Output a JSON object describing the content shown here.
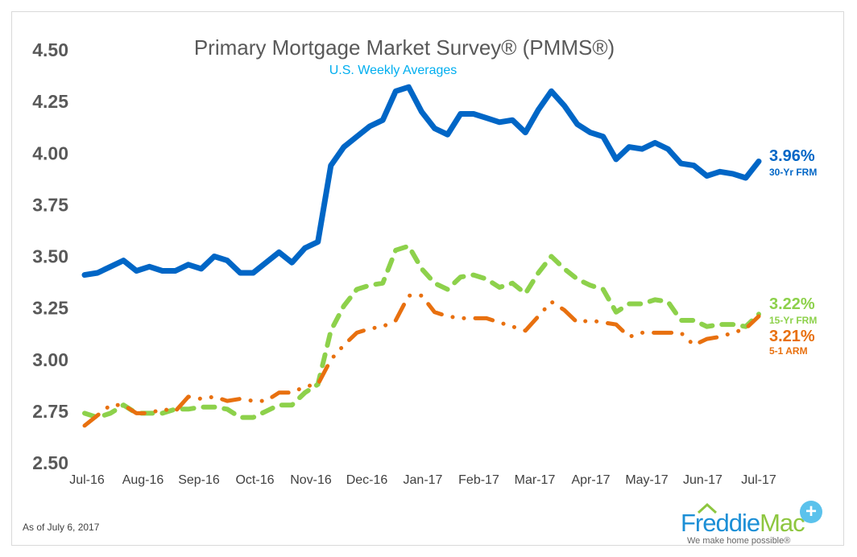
{
  "chart_data": {
    "type": "line",
    "title": "Primary Mortgage Market Survey® (PMMS®)",
    "subtitle": "U.S. Weekly Averages",
    "xlabel": "",
    "ylabel": "",
    "ylim": [
      2.5,
      4.5
    ],
    "yticks": [
      "4.50",
      "4.25",
      "4.00",
      "3.75",
      "3.50",
      "3.25",
      "3.00",
      "2.75",
      "2.50"
    ],
    "xticks": [
      "Jul-16",
      "Aug-16",
      "Sep-16",
      "Oct-16",
      "Nov-16",
      "Dec-16",
      "Jan-17",
      "Feb-17",
      "Mar-17",
      "Apr-17",
      "May-17",
      "Jun-17",
      "Jul-17"
    ],
    "grid": false,
    "series": [
      {
        "name": "30-Yr FRM",
        "last_label": "3.96%",
        "color": "#0066c6",
        "style": "solid",
        "values": [
          3.41,
          3.42,
          3.45,
          3.48,
          3.43,
          3.45,
          3.43,
          3.43,
          3.46,
          3.44,
          3.5,
          3.48,
          3.42,
          3.42,
          3.47,
          3.52,
          3.47,
          3.54,
          3.57,
          3.94,
          4.03,
          4.08,
          4.13,
          4.16,
          4.3,
          4.32,
          4.2,
          4.12,
          4.09,
          4.19,
          4.19,
          4.17,
          4.15,
          4.16,
          4.1,
          4.21,
          4.3,
          4.23,
          4.14,
          4.1,
          4.08,
          3.97,
          4.03,
          4.02,
          4.05,
          4.02,
          3.95,
          3.94,
          3.89,
          3.91,
          3.9,
          3.88,
          3.96
        ]
      },
      {
        "name": "15-Yr FRM",
        "last_label": "3.22%",
        "color": "#8dd14b",
        "style": "dashed",
        "values": [
          2.74,
          2.72,
          2.74,
          2.78,
          2.74,
          2.74,
          2.74,
          2.76,
          2.76,
          2.77,
          2.77,
          2.76,
          2.72,
          2.72,
          2.75,
          2.78,
          2.78,
          2.84,
          2.88,
          3.14,
          3.26,
          3.34,
          3.36,
          3.37,
          3.53,
          3.55,
          3.44,
          3.37,
          3.34,
          3.4,
          3.41,
          3.39,
          3.35,
          3.37,
          3.32,
          3.42,
          3.5,
          3.44,
          3.39,
          3.36,
          3.34,
          3.23,
          3.27,
          3.27,
          3.29,
          3.28,
          3.19,
          3.19,
          3.16,
          3.17,
          3.17,
          3.16,
          3.22
        ]
      },
      {
        "name": "5-1 ARM",
        "last_label": "3.21%",
        "color": "#e8700f",
        "style": "dash-dot",
        "values": [
          2.68,
          2.73,
          2.78,
          2.78,
          2.74,
          2.74,
          2.76,
          2.75,
          2.82,
          2.81,
          2.82,
          2.8,
          2.81,
          2.8,
          2.8,
          2.84,
          2.84,
          2.87,
          2.88,
          3.0,
          3.07,
          3.13,
          3.15,
          3.16,
          3.19,
          3.31,
          3.31,
          3.23,
          3.21,
          3.2,
          3.2,
          3.2,
          3.18,
          3.16,
          3.14,
          3.21,
          3.28,
          3.24,
          3.18,
          3.19,
          3.18,
          3.17,
          3.11,
          3.13,
          3.13,
          3.13,
          3.13,
          3.07,
          3.1,
          3.11,
          3.13,
          3.15,
          3.21
        ]
      }
    ]
  },
  "footer": {
    "as_of": "As of July 6, 2017"
  },
  "logo": {
    "name": "FreddieMac",
    "tagline": "We make home possible®"
  }
}
